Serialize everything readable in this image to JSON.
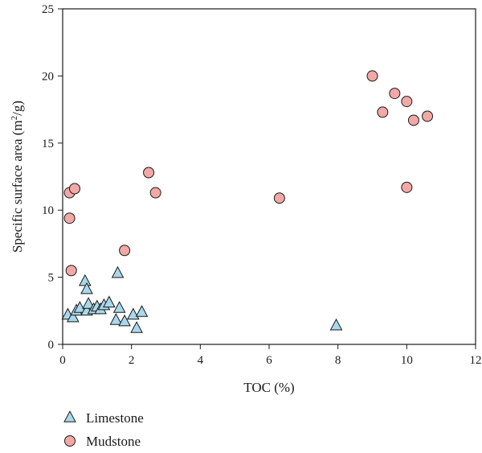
{
  "chart_data": {
    "type": "scatter",
    "xlabel": "TOC (%)",
    "ylabel": {
      "prefix": "Specific surface area (m",
      "sup": "2",
      "suffix": "/g)"
    },
    "xlim": [
      0,
      12
    ],
    "ylim": [
      0,
      25
    ],
    "xticks": [
      0,
      2,
      4,
      6,
      8,
      10,
      12
    ],
    "yticks": [
      0,
      5,
      10,
      15,
      20,
      25
    ],
    "grid": false,
    "legend_position": "bottom-left",
    "series": [
      {
        "name": "Limestone",
        "marker": "triangle",
        "color": "#a9d8ec",
        "points": [
          [
            0.15,
            2.2
          ],
          [
            0.3,
            2.0
          ],
          [
            0.4,
            2.5
          ],
          [
            0.5,
            2.7
          ],
          [
            0.65,
            4.7
          ],
          [
            0.7,
            4.1
          ],
          [
            0.7,
            2.5
          ],
          [
            0.75,
            3.0
          ],
          [
            0.9,
            2.6
          ],
          [
            1.0,
            2.8
          ],
          [
            1.1,
            2.6
          ],
          [
            1.2,
            2.9
          ],
          [
            1.35,
            3.1
          ],
          [
            1.55,
            1.8
          ],
          [
            1.6,
            5.3
          ],
          [
            1.65,
            2.7
          ],
          [
            1.8,
            1.7
          ],
          [
            2.05,
            2.2
          ],
          [
            2.15,
            1.2
          ],
          [
            2.3,
            2.4
          ],
          [
            7.95,
            1.4
          ]
        ]
      },
      {
        "name": "Mudstone",
        "marker": "circle",
        "color": "#f2a8a6",
        "points": [
          [
            0.2,
            11.3
          ],
          [
            0.2,
            9.4
          ],
          [
            0.25,
            5.5
          ],
          [
            0.35,
            11.6
          ],
          [
            1.8,
            7.0
          ],
          [
            2.5,
            12.8
          ],
          [
            2.7,
            11.3
          ],
          [
            6.3,
            10.9
          ],
          [
            9.0,
            20.0
          ],
          [
            9.3,
            17.3
          ],
          [
            9.65,
            18.7
          ],
          [
            10.0,
            18.1
          ],
          [
            10.0,
            11.7
          ],
          [
            10.2,
            16.7
          ],
          [
            10.6,
            17.0
          ]
        ]
      }
    ]
  }
}
